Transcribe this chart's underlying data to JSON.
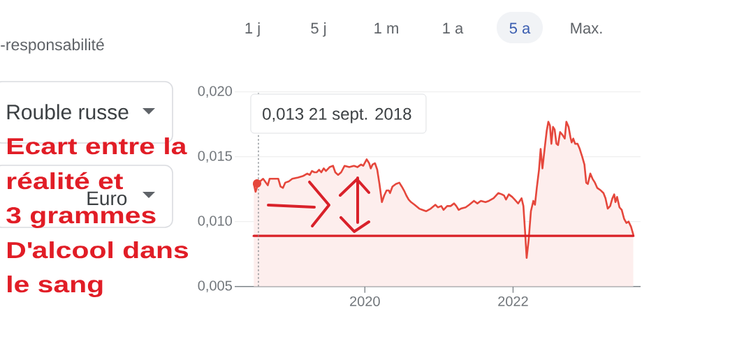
{
  "chart_data": {
    "type": "area",
    "x": [
      "2018-07-02",
      "2018-07-11",
      "2018-07-25",
      "2018-08-17",
      "2018-09-09",
      "2018-09-18",
      "2018-10-02",
      "2018-10-31",
      "2018-11-11",
      "2018-11-23",
      "2018-12-04",
      "2018-12-22",
      "2019-01-08",
      "2019-02-05",
      "2019-02-28",
      "2019-03-12",
      "2019-03-23",
      "2019-04-04",
      "2019-04-15",
      "2019-04-27",
      "2019-05-08",
      "2019-05-20",
      "2019-05-31",
      "2019-06-12",
      "2019-06-23",
      "2019-07-11",
      "2019-07-28",
      "2019-08-08",
      "2019-08-22",
      "2019-09-06",
      "2019-09-23",
      "2019-10-16",
      "2019-11-08",
      "2019-11-25",
      "2019-12-13",
      "2019-12-24",
      "2020-01-10",
      "2020-01-22",
      "2020-01-30",
      "2020-02-08",
      "2020-02-20",
      "2020-03-02",
      "2020-03-13",
      "2020-03-25",
      "2020-04-05",
      "2020-04-17",
      "2020-04-28",
      "2020-05-04",
      "2020-05-16",
      "2020-06-02",
      "2020-06-19",
      "2020-07-01",
      "2020-07-12",
      "2020-07-24",
      "2020-08-04",
      "2020-08-16",
      "2020-09-02",
      "2020-09-25",
      "2020-10-12",
      "2020-10-29",
      "2020-11-21",
      "2020-12-14",
      "2020-12-26",
      "2021-01-12",
      "2021-01-23",
      "2021-02-10",
      "2021-02-27",
      "2021-03-16",
      "2021-03-27",
      "2021-04-08",
      "2021-04-19",
      "2021-05-12",
      "2021-05-30",
      "2021-06-22",
      "2021-07-09",
      "2021-07-26",
      "2021-08-18",
      "2021-09-04",
      "2021-09-27",
      "2021-10-20",
      "2021-11-07",
      "2021-11-18",
      "2021-11-27",
      "2021-12-11",
      "2021-12-28",
      "2022-01-09",
      "2022-01-26",
      "2022-02-12",
      "2022-02-21",
      "2022-03-01",
      "2022-03-09",
      "2022-03-19",
      "2022-03-30",
      "2022-04-11",
      "2022-04-19",
      "2022-04-28",
      "2022-05-09",
      "2022-05-17",
      "2022-05-26",
      "2022-06-07",
      "2022-06-16",
      "2022-06-24",
      "2022-07-02",
      "2022-07-09",
      "2022-07-17",
      "2022-07-25",
      "2022-08-03",
      "2022-08-11",
      "2022-08-21",
      "2022-09-01",
      "2022-09-13",
      "2022-09-21",
      "2022-10-02",
      "2022-10-11",
      "2022-10-17",
      "2022-10-25",
      "2022-11-03",
      "2022-11-15",
      "2022-11-26",
      "2022-12-08",
      "2022-12-19",
      "2022-12-28",
      "2023-01-05",
      "2023-01-17",
      "2023-01-28",
      "2023-02-09",
      "2023-02-20",
      "2023-03-10",
      "2023-03-23",
      "2023-04-02",
      "2023-04-13",
      "2023-04-25",
      "2023-05-06",
      "2023-05-15",
      "2023-05-21",
      "2023-05-29",
      "2023-06-10",
      "2023-06-21",
      "2023-07-03",
      "2023-07-14",
      "2023-07-25",
      "2023-08-06",
      "2023-08-17"
    ],
    "series": [
      {
        "color": "#e5473c",
        "values": [
          0.0129,
          0.0123,
          0.013,
          0.0133,
          0.0128,
          0.0133,
          0.0133,
          0.0133,
          0.0127,
          0.0126,
          0.013,
          0.0131,
          0.0133,
          0.0134,
          0.0135,
          0.0136,
          0.0137,
          0.0136,
          0.0139,
          0.0138,
          0.0138,
          0.014,
          0.0138,
          0.0141,
          0.0139,
          0.0142,
          0.0143,
          0.0138,
          0.0136,
          0.0138,
          0.0143,
          0.0142,
          0.0143,
          0.0142,
          0.0144,
          0.0143,
          0.0148,
          0.0145,
          0.0141,
          0.0144,
          0.0145,
          0.014,
          0.0129,
          0.0115,
          0.012,
          0.0124,
          0.0124,
          0.0122,
          0.0127,
          0.0129,
          0.013,
          0.0127,
          0.0124,
          0.012,
          0.0117,
          0.0115,
          0.0113,
          0.011,
          0.0109,
          0.0108,
          0.011,
          0.0113,
          0.0111,
          0.0112,
          0.0109,
          0.0112,
          0.0112,
          0.0114,
          0.0112,
          0.0109,
          0.011,
          0.0111,
          0.0113,
          0.0116,
          0.0114,
          0.0116,
          0.0115,
          0.0116,
          0.0118,
          0.0122,
          0.0121,
          0.012,
          0.0117,
          0.0121,
          0.0119,
          0.0117,
          0.0114,
          0.0118,
          0.0112,
          0.0093,
          0.0072,
          0.0086,
          0.0108,
          0.0116,
          0.0113,
          0.0126,
          0.014,
          0.0156,
          0.0141,
          0.0158,
          0.017,
          0.0177,
          0.0174,
          0.016,
          0.0173,
          0.0171,
          0.016,
          0.0159,
          0.0169,
          0.0167,
          0.0164,
          0.0177,
          0.0173,
          0.0165,
          0.0161,
          0.0164,
          0.016,
          0.016,
          0.0156,
          0.015,
          0.0144,
          0.013,
          0.0129,
          0.0137,
          0.0133,
          0.013,
          0.0126,
          0.0124,
          0.0122,
          0.0118,
          0.011,
          0.0112,
          0.0118,
          0.0121,
          0.0115,
          0.0119,
          0.0111,
          0.0109,
          0.0102,
          0.0099,
          0.01,
          0.0096,
          0.009
        ]
      }
    ],
    "xlim": [
      "2018-03-30",
      "2023-09-22"
    ],
    "xticks": [
      {
        "value": "2020-01-01",
        "label": "2020"
      },
      {
        "value": "2022-01-01",
        "label": "2022"
      }
    ],
    "ylim": [
      0.005,
      0.02
    ],
    "yticks": [
      {
        "value": 0.005,
        "label": "0,005"
      },
      {
        "value": 0.01,
        "label": "0,010"
      },
      {
        "value": 0.015,
        "label": "0,015"
      },
      {
        "value": 0.02,
        "label": "0,020"
      }
    ],
    "grid": "y",
    "ref_lines": [
      {
        "axis": "y",
        "value": 0.0089,
        "color": "#d91f26"
      },
      {
        "axis": "x",
        "value": "2018-07-25",
        "color": "#80868b",
        "line_style": "dotted",
        "label": "0,013 21 sept. 2018"
      }
    ],
    "annotations": [
      "-responsabilité",
      "1 j",
      "5 j",
      "1 m",
      "1 a",
      "5 a",
      "Max.",
      "Rouble russe",
      "Euro",
      "Ecart entre la",
      "réalité et",
      "3 grammes",
      "D'alcool dans",
      "le sang"
    ]
  }
}
